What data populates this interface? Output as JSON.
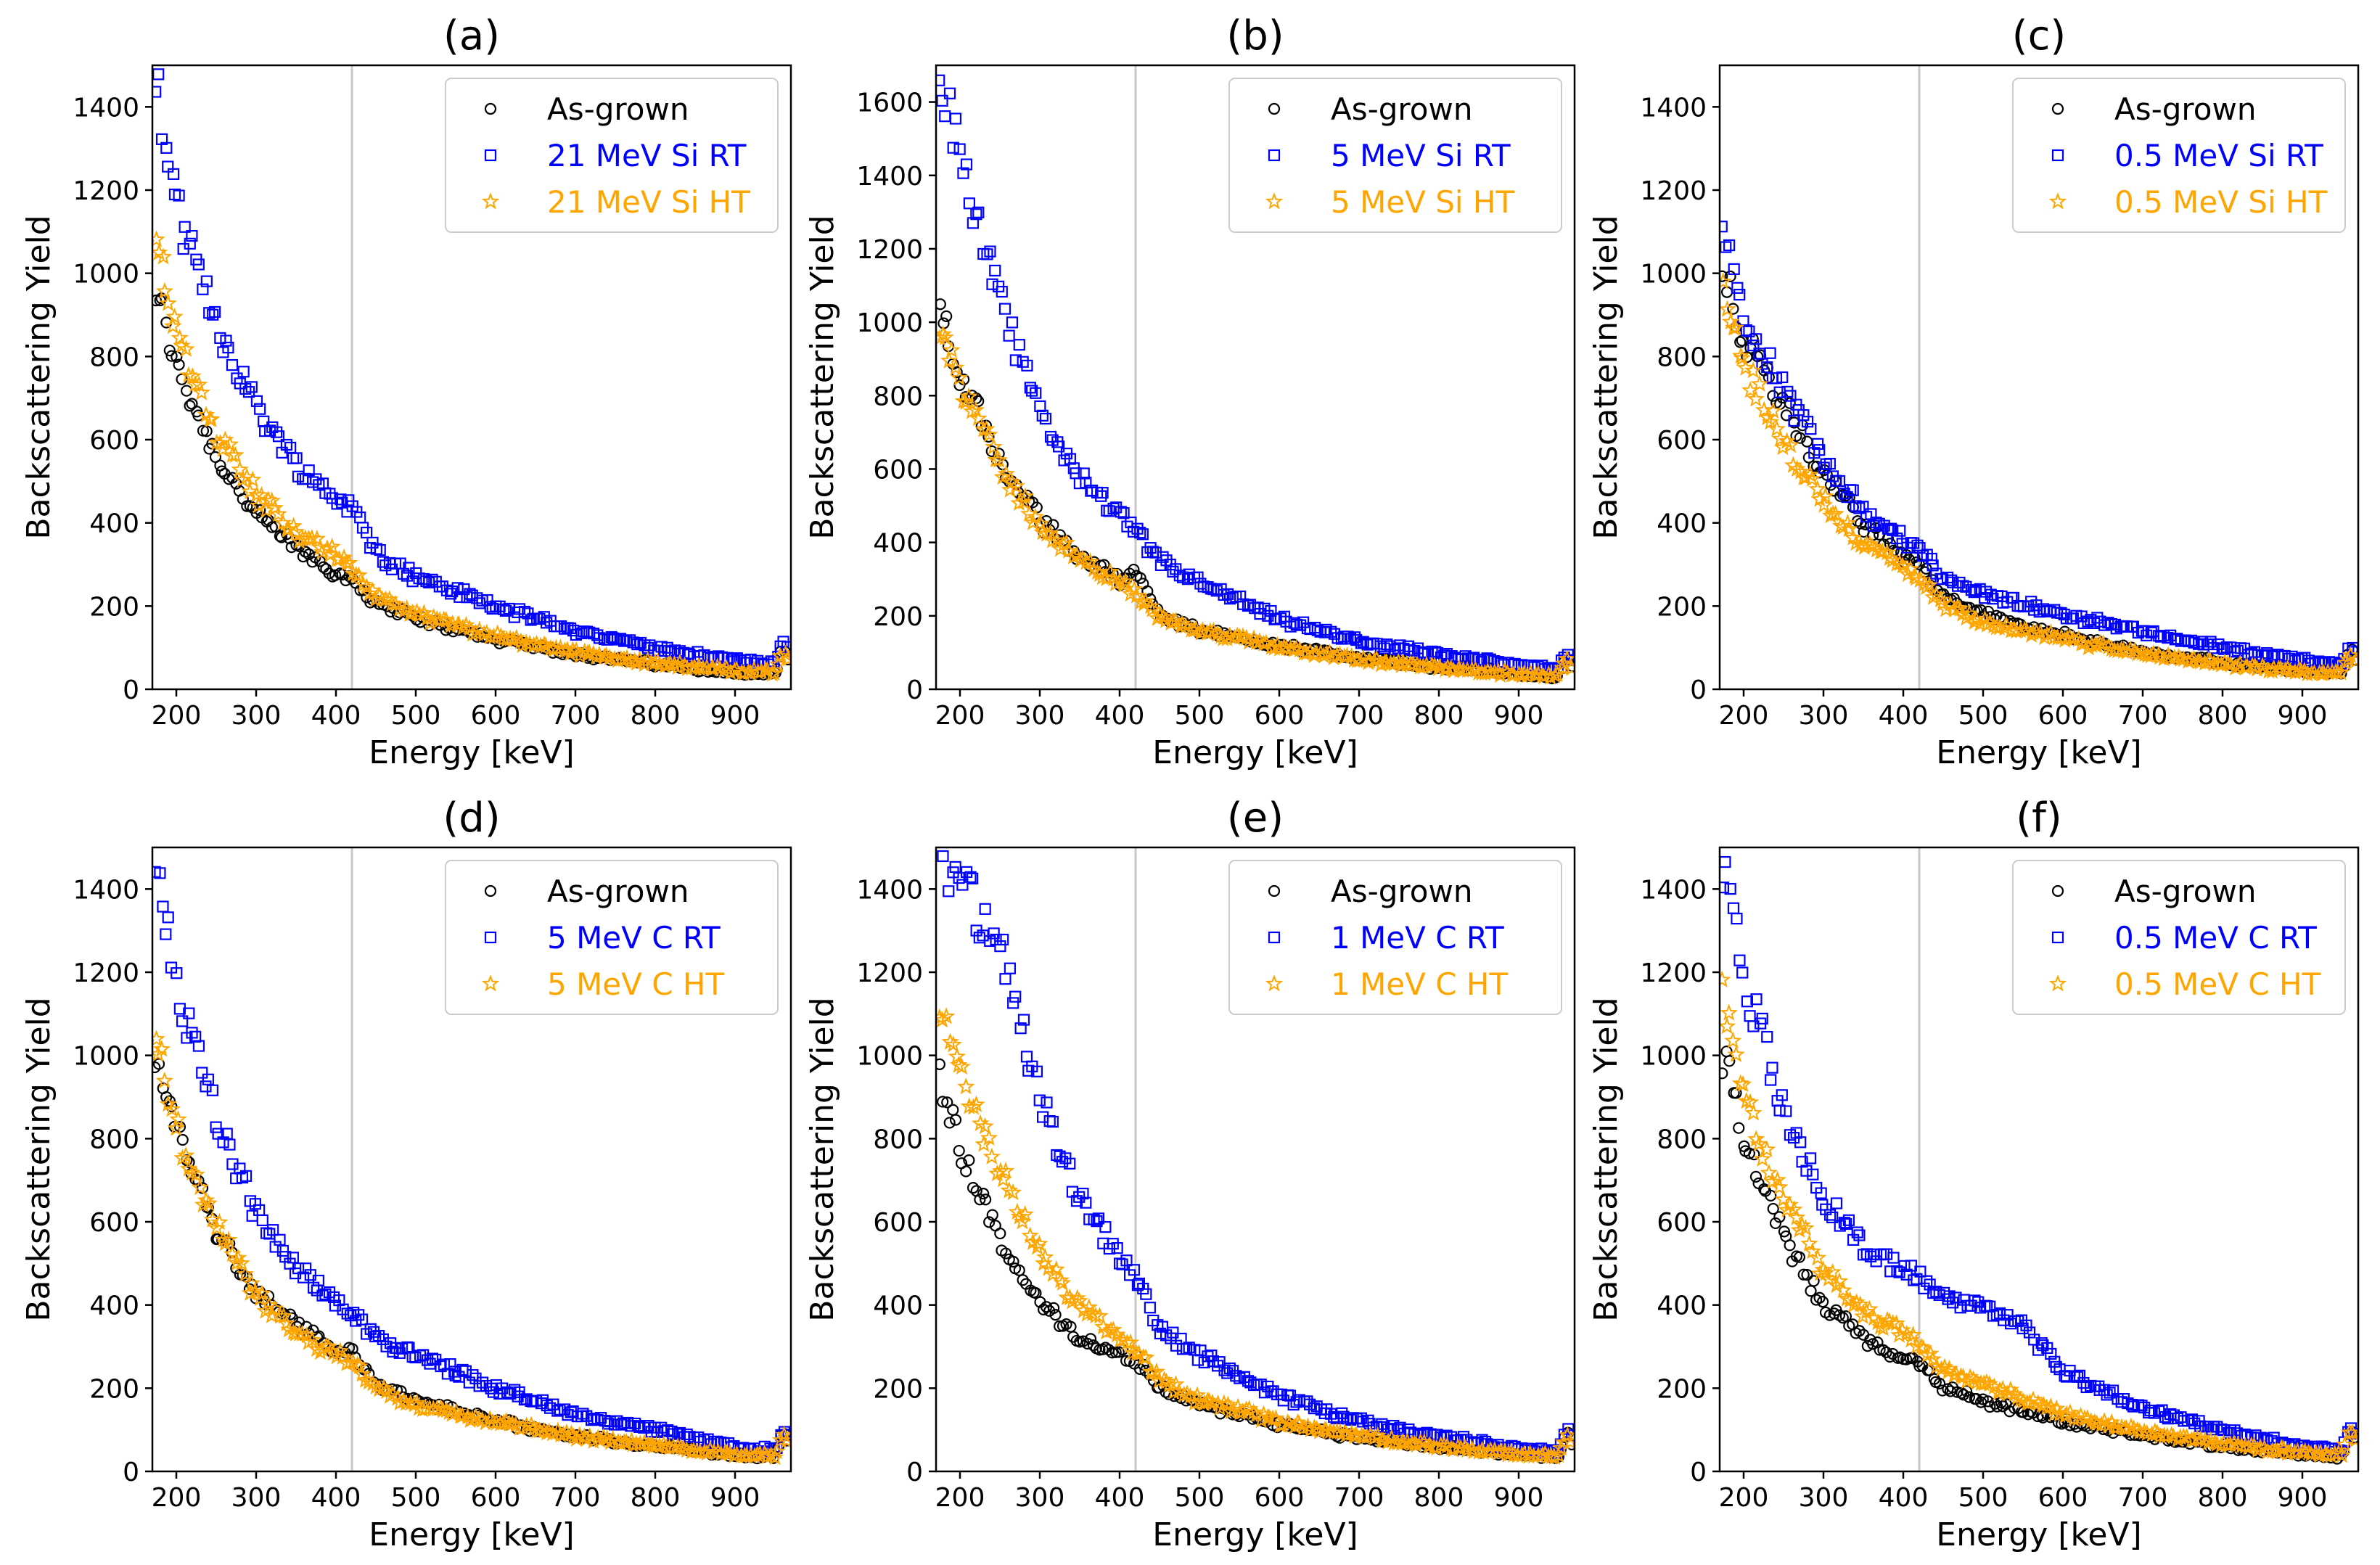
{
  "figure": {
    "xlabel": "Energy [keV]",
    "ylabel": "Backscattering Yield",
    "marker_line_keV": 420,
    "colors": {
      "as_grown": "#000000",
      "rt": "#0000ff",
      "ht": "#ffa500",
      "marker_line": "#c8c8c8"
    }
  },
  "chart_data": [
    {
      "type": "scatter",
      "title": "(a)",
      "xlabel": "Energy [keV]",
      "ylabel": "Backscattering Yield",
      "xlim": [
        170,
        970
      ],
      "ylim": [
        0,
        1500
      ],
      "xticks": [
        200,
        300,
        400,
        500,
        600,
        700,
        800,
        900
      ],
      "yticks": [
        0,
        200,
        400,
        600,
        800,
        1000,
        1200,
        1400
      ],
      "legend_position": "top-right",
      "series": [
        {
          "name": "As-grown",
          "marker": "circle",
          "color": "#000000",
          "x": [
            175,
            200,
            250,
            300,
            350,
            400,
            420,
            450,
            500,
            600,
            700,
            800,
            900,
            950,
            960,
            970
          ],
          "y": [
            950,
            780,
            560,
            420,
            340,
            280,
            260,
            210,
            170,
            120,
            85,
            60,
            40,
            35,
            110,
            50
          ]
        },
        {
          "name": "21 MeV Si RT",
          "marker": "square",
          "color": "#0000ff",
          "x": [
            175,
            200,
            250,
            300,
            350,
            400,
            420,
            450,
            500,
            600,
            700,
            800,
            900,
            950,
            960,
            970
          ],
          "y": [
            1450,
            1150,
            880,
            680,
            540,
            460,
            440,
            330,
            270,
            200,
            140,
            100,
            70,
            60,
            120,
            80
          ]
        },
        {
          "name": "21 MeV Si HT",
          "marker": "star",
          "color": "#ffa500",
          "x": [
            175,
            200,
            250,
            300,
            350,
            400,
            420,
            450,
            500,
            600,
            700,
            800,
            900,
            950,
            960,
            970
          ],
          "y": [
            1100,
            860,
            620,
            470,
            380,
            320,
            290,
            220,
            180,
            125,
            90,
            62,
            45,
            40,
            100,
            60
          ]
        }
      ]
    },
    {
      "type": "scatter",
      "title": "(b)",
      "xlabel": "Energy [keV]",
      "ylabel": "Backscattering Yield",
      "xlim": [
        170,
        970
      ],
      "ylim": [
        0,
        1700
      ],
      "xticks": [
        200,
        300,
        400,
        500,
        600,
        700,
        800,
        900
      ],
      "yticks": [
        0,
        200,
        400,
        600,
        800,
        1000,
        1200,
        1400,
        1600
      ],
      "legend_position": "top-right",
      "series": [
        {
          "name": "As-grown",
          "marker": "circle",
          "color": "#000000",
          "x": [
            175,
            200,
            250,
            300,
            350,
            400,
            420,
            450,
            500,
            600,
            700,
            800,
            900,
            950,
            960,
            970
          ],
          "y": [
            1050,
            860,
            620,
            460,
            360,
            300,
            330,
            200,
            160,
            120,
            85,
            60,
            40,
            35,
            90,
            50
          ]
        },
        {
          "name": "5 MeV Si RT",
          "marker": "square",
          "color": "#0000ff",
          "x": [
            175,
            200,
            250,
            300,
            350,
            400,
            420,
            450,
            500,
            600,
            700,
            800,
            900,
            950,
            960,
            970
          ],
          "y": [
            1680,
            1450,
            1050,
            750,
            580,
            470,
            430,
            350,
            290,
            190,
            130,
            95,
            65,
            60,
            100,
            80
          ]
        },
        {
          "name": "5 MeV Si HT",
          "marker": "star",
          "color": "#ffa500",
          "x": [
            175,
            200,
            250,
            300,
            350,
            400,
            420,
            450,
            500,
            600,
            700,
            800,
            900,
            950,
            960,
            970
          ],
          "y": [
            1000,
            840,
            600,
            450,
            350,
            290,
            260,
            200,
            160,
            115,
            80,
            58,
            40,
            35,
            80,
            50
          ]
        }
      ]
    },
    {
      "type": "scatter",
      "title": "(c)",
      "xlabel": "Energy [keV]",
      "ylabel": "Backscattering Yield",
      "xlim": [
        170,
        970
      ],
      "ylim": [
        0,
        1500
      ],
      "xticks": [
        200,
        300,
        400,
        500,
        600,
        700,
        800,
        900
      ],
      "yticks": [
        0,
        200,
        400,
        600,
        800,
        1000,
        1200,
        1400
      ],
      "legend_position": "top-right",
      "series": [
        {
          "name": "As-grown",
          "marker": "circle",
          "color": "#000000",
          "x": [
            175,
            200,
            250,
            300,
            350,
            400,
            420,
            450,
            500,
            600,
            700,
            800,
            900,
            950,
            960,
            970
          ],
          "y": [
            1000,
            850,
            680,
            520,
            400,
            320,
            300,
            220,
            180,
            130,
            90,
            65,
            45,
            40,
            100,
            60
          ]
        },
        {
          "name": "0.5 MeV Si RT",
          "marker": "square",
          "color": "#0000ff",
          "x": [
            175,
            200,
            250,
            300,
            350,
            400,
            420,
            450,
            500,
            600,
            700,
            800,
            900,
            950,
            960,
            970
          ],
          "y": [
            1100,
            900,
            720,
            560,
            430,
            360,
            340,
            260,
            230,
            180,
            140,
            100,
            70,
            60,
            110,
            80
          ]
        },
        {
          "name": "0.5 MeV Si HT",
          "marker": "star",
          "color": "#ffa500",
          "x": [
            175,
            200,
            250,
            300,
            350,
            400,
            420,
            450,
            500,
            600,
            700,
            800,
            900,
            950,
            960,
            970
          ],
          "y": [
            950,
            780,
            600,
            450,
            350,
            290,
            270,
            200,
            160,
            120,
            85,
            60,
            42,
            38,
            90,
            55
          ]
        }
      ]
    },
    {
      "type": "scatter",
      "title": "(d)",
      "xlabel": "Energy [keV]",
      "ylabel": "Backscattering Yield",
      "xlim": [
        170,
        970
      ],
      "ylim": [
        0,
        1500
      ],
      "xticks": [
        200,
        300,
        400,
        500,
        600,
        700,
        800,
        900
      ],
      "yticks": [
        0,
        200,
        400,
        600,
        800,
        1000,
        1200,
        1400
      ],
      "legend_position": "top-right",
      "series": [
        {
          "name": "As-grown",
          "marker": "circle",
          "color": "#000000",
          "x": [
            175,
            200,
            250,
            300,
            350,
            400,
            420,
            450,
            500,
            600,
            700,
            800,
            900,
            950,
            960,
            970
          ],
          "y": [
            1000,
            820,
            580,
            430,
            350,
            290,
            290,
            210,
            170,
            120,
            85,
            60,
            40,
            35,
            100,
            50
          ]
        },
        {
          "name": "5 MeV C RT",
          "marker": "square",
          "color": "#0000ff",
          "x": [
            175,
            200,
            250,
            300,
            350,
            400,
            420,
            450,
            500,
            600,
            700,
            800,
            900,
            950,
            960,
            970
          ],
          "y": [
            1450,
            1150,
            850,
            620,
            480,
            410,
            380,
            320,
            280,
            200,
            140,
            100,
            60,
            50,
            100,
            80
          ]
        },
        {
          "name": "5 MeV C HT",
          "marker": "star",
          "color": "#ffa500",
          "x": [
            175,
            200,
            250,
            300,
            350,
            400,
            420,
            450,
            500,
            600,
            700,
            800,
            900,
            950,
            960,
            970
          ],
          "y": [
            1050,
            830,
            590,
            420,
            330,
            280,
            260,
            200,
            160,
            120,
            85,
            60,
            42,
            38,
            90,
            55
          ]
        }
      ]
    },
    {
      "type": "scatter",
      "title": "(e)",
      "xlabel": "Energy [keV]",
      "ylabel": "Backscattering Yield",
      "xlim": [
        170,
        970
      ],
      "ylim": [
        0,
        1500
      ],
      "xticks": [
        200,
        300,
        400,
        500,
        600,
        700,
        800,
        900
      ],
      "yticks": [
        0,
        200,
        400,
        600,
        800,
        1000,
        1200,
        1400
      ],
      "legend_position": "top-right",
      "series": [
        {
          "name": "As-grown",
          "marker": "circle",
          "color": "#000000",
          "x": [
            175,
            200,
            250,
            300,
            350,
            400,
            420,
            450,
            500,
            600,
            700,
            800,
            900,
            950,
            960,
            970
          ],
          "y": [
            950,
            780,
            560,
            400,
            320,
            280,
            270,
            200,
            160,
            115,
            80,
            58,
            40,
            35,
            100,
            50
          ]
        },
        {
          "name": "1 MeV C RT",
          "marker": "square",
          "color": "#0000ff",
          "x": [
            175,
            200,
            250,
            300,
            350,
            400,
            420,
            450,
            500,
            600,
            700,
            800,
            900,
            950,
            960,
            970
          ],
          "y": [
            1480,
            1420,
            1250,
            900,
            650,
            520,
            460,
            340,
            280,
            180,
            120,
            85,
            55,
            50,
            100,
            80
          ]
        },
        {
          "name": "1 MeV C HT",
          "marker": "star",
          "color": "#ffa500",
          "x": [
            175,
            200,
            250,
            300,
            350,
            400,
            420,
            450,
            500,
            600,
            700,
            800,
            900,
            950,
            960,
            970
          ],
          "y": [
            1100,
            950,
            720,
            520,
            400,
            320,
            290,
            220,
            170,
            120,
            85,
            60,
            42,
            38,
            90,
            55
          ]
        }
      ]
    },
    {
      "type": "scatter",
      "title": "(f)",
      "xlabel": "Energy [keV]",
      "ylabel": "Backscattering Yield",
      "xlim": [
        170,
        970
      ],
      "ylim": [
        0,
        1500
      ],
      "xticks": [
        200,
        300,
        400,
        500,
        600,
        700,
        800,
        900
      ],
      "yticks": [
        0,
        200,
        400,
        600,
        800,
        1000,
        1200,
        1400
      ],
      "legend_position": "top-right",
      "series": [
        {
          "name": "As-grown",
          "marker": "circle",
          "color": "#000000",
          "x": [
            175,
            200,
            250,
            300,
            350,
            400,
            420,
            450,
            500,
            600,
            700,
            800,
            900,
            950,
            960,
            970
          ],
          "y": [
            1000,
            800,
            560,
            400,
            320,
            270,
            260,
            200,
            170,
            120,
            85,
            60,
            40,
            35,
            110,
            50
          ]
        },
        {
          "name": "0.5 MeV C RT",
          "marker": "square",
          "color": "#0000ff",
          "x": [
            175,
            200,
            250,
            300,
            350,
            400,
            420,
            450,
            500,
            550,
            600,
            700,
            800,
            900,
            950,
            960,
            970
          ],
          "y": [
            1450,
            1200,
            880,
            650,
            540,
            480,
            470,
            410,
            400,
            350,
            240,
            150,
            100,
            60,
            50,
            110,
            80
          ]
        },
        {
          "name": "0.5 MeV C HT",
          "marker": "star",
          "color": "#ffa500",
          "x": [
            175,
            200,
            250,
            300,
            350,
            400,
            420,
            450,
            500,
            600,
            700,
            800,
            900,
            950,
            960,
            970
          ],
          "y": [
            1150,
            900,
            650,
            480,
            380,
            330,
            300,
            250,
            210,
            140,
            95,
            65,
            45,
            40,
            100,
            60
          ]
        }
      ]
    }
  ]
}
